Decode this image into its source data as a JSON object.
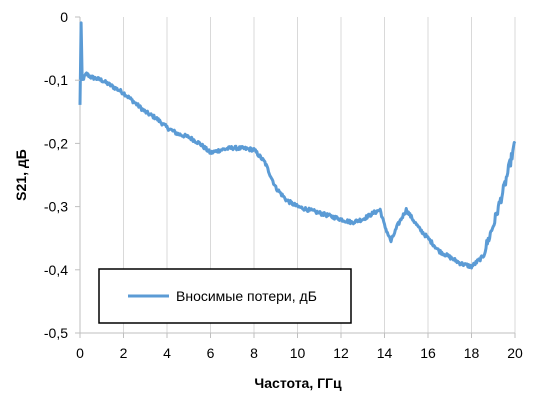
{
  "chart_data": {
    "type": "line",
    "title": "",
    "xlabel": "Частота, ГГц",
    "ylabel": "S21, дБ",
    "xlim": [
      0,
      20
    ],
    "ylim": [
      -0.5,
      0
    ],
    "x_ticks": [
      0,
      2,
      4,
      6,
      8,
      10,
      12,
      14,
      16,
      18,
      20
    ],
    "y_ticks": [
      0,
      -0.1,
      -0.2,
      -0.3,
      -0.4,
      -0.5
    ],
    "x_tick_labels": [
      "0",
      "2",
      "4",
      "6",
      "8",
      "10",
      "12",
      "14",
      "16",
      "18",
      "20"
    ],
    "y_tick_labels": [
      "0",
      "-0,1",
      "-0,2",
      "-0,3",
      "-0,4",
      "-0,5"
    ],
    "grid": "vertical",
    "legend": "center-left",
    "series_color": "#5b9bd5",
    "series": [
      {
        "name": "Вносимые потери, дБ",
        "x": [
          0,
          0.05,
          0.1,
          0.2,
          0.3,
          0.5,
          1,
          1.5,
          2,
          2.5,
          3,
          3.5,
          4,
          4.5,
          5,
          5.5,
          6,
          6.5,
          7,
          7.5,
          8,
          8.5,
          9,
          9.5,
          10,
          10.5,
          11,
          11.5,
          12,
          12.5,
          13,
          13.5,
          13.8,
          14,
          14.3,
          14.6,
          15,
          15.3,
          15.6,
          16,
          16.5,
          17,
          17.5,
          18,
          18.5,
          19,
          19.5,
          20
        ],
        "y": [
          -0.14,
          -0.01,
          -0.1,
          -0.095,
          -0.09,
          -0.095,
          -0.1,
          -0.11,
          -0.12,
          -0.135,
          -0.15,
          -0.16,
          -0.175,
          -0.185,
          -0.19,
          -0.2,
          -0.215,
          -0.21,
          -0.207,
          -0.208,
          -0.21,
          -0.23,
          -0.27,
          -0.29,
          -0.3,
          -0.305,
          -0.31,
          -0.315,
          -0.32,
          -0.325,
          -0.32,
          -0.31,
          -0.305,
          -0.33,
          -0.355,
          -0.33,
          -0.305,
          -0.32,
          -0.335,
          -0.35,
          -0.37,
          -0.38,
          -0.39,
          -0.395,
          -0.38,
          -0.33,
          -0.27,
          -0.2
        ]
      }
    ]
  }
}
